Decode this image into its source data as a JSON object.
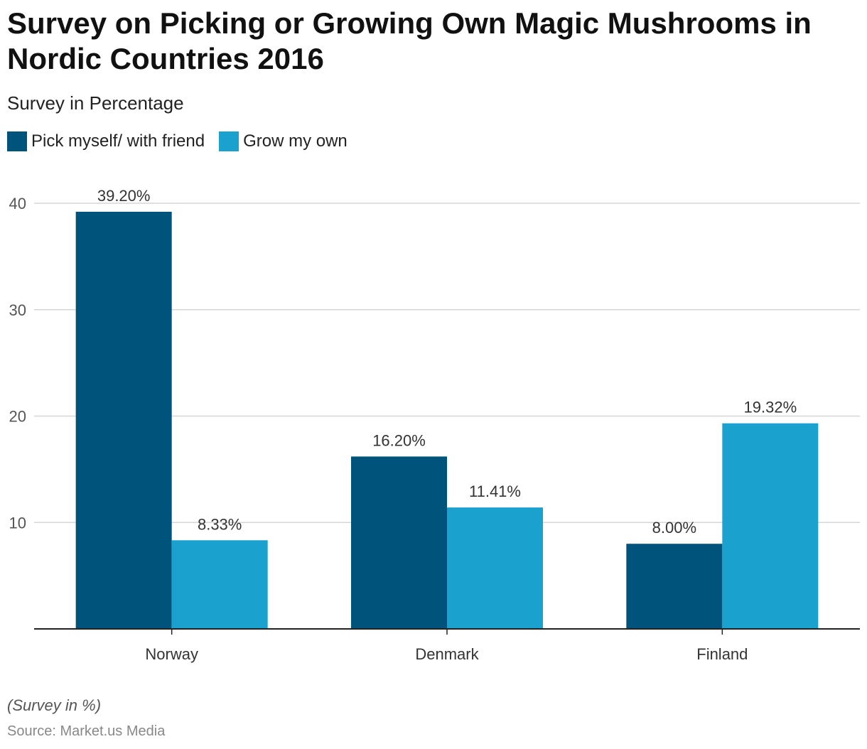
{
  "title": "Survey on Picking or Growing Own Magic Mushrooms in Nordic Countries 2016",
  "subtitle": "Survey in Percentage",
  "note": "(Survey in %)",
  "source": "Source: Market.us Media",
  "chart_data": {
    "type": "bar",
    "title": "Survey on Picking or Growing Own Magic Mushrooms in Nordic Countries 2016",
    "categories": [
      "Norway",
      "Denmark",
      "Finland"
    ],
    "series": [
      {
        "name": "Pick myself/ with friend",
        "values": [
          39.2,
          16.2,
          8.0
        ],
        "labels": [
          "39.20%",
          "16.20%",
          "8.00%"
        ],
        "color": "#00537a"
      },
      {
        "name": "Grow my own",
        "values": [
          8.33,
          11.41,
          19.32
        ],
        "labels": [
          "8.33%",
          "11.41%",
          "19.32%"
        ],
        "color": "#1aa1ce"
      }
    ],
    "yticks": [
      10,
      20,
      30,
      40
    ],
    "ylim": [
      0,
      40
    ],
    "xlabel": "",
    "ylabel": "",
    "grid": true,
    "legend": "top-left"
  }
}
